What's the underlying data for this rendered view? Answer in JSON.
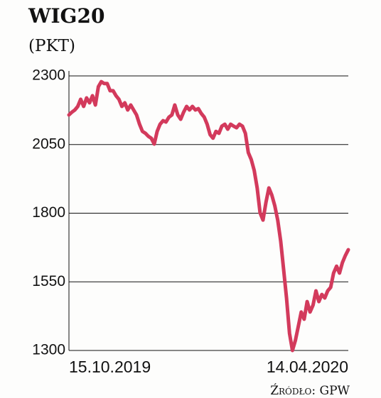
{
  "chart_data": {
    "type": "line",
    "title": "WIG20",
    "subtitle": "(PKT)",
    "source": "Źródło: GPW",
    "categories": [
      "15.10.2019",
      null,
      null,
      null,
      null,
      null,
      null,
      null,
      null,
      null,
      null,
      null,
      null,
      null,
      null,
      null,
      null,
      null,
      null,
      null,
      null,
      null,
      null,
      null,
      null,
      null,
      null,
      null,
      null,
      null,
      null,
      null,
      null,
      null,
      null,
      null,
      null,
      null,
      null,
      null,
      null,
      null,
      null,
      null,
      null,
      null,
      null,
      null,
      null,
      null,
      null,
      null,
      null,
      null,
      null,
      null,
      null,
      null,
      null,
      null,
      null,
      null,
      null,
      null,
      null,
      null,
      null,
      null,
      null,
      null,
      null,
      null,
      null,
      null,
      null,
      null,
      null,
      null,
      null,
      null,
      null,
      null,
      null,
      null,
      null,
      null,
      null,
      null,
      null,
      null,
      null,
      null,
      null,
      null,
      null,
      "14.04.2020"
    ],
    "series": [
      {
        "name": "WIG20",
        "color": "#d33a5c",
        "values": [
          2158,
          2168,
          2176,
          2189,
          2215,
          2189,
          2220,
          2202,
          2228,
          2194,
          2261,
          2279,
          2272,
          2272,
          2246,
          2246,
          2228,
          2215,
          2189,
          2202,
          2176,
          2194,
          2176,
          2158,
          2124,
          2098,
          2091,
          2080,
          2073,
          2052,
          2098,
          2124,
          2137,
          2132,
          2150,
          2158,
          2194,
          2158,
          2142,
          2168,
          2189,
          2176,
          2189,
          2176,
          2181,
          2163,
          2150,
          2124,
          2086,
          2073,
          2098,
          2091,
          2117,
          2124,
          2106,
          2124,
          2117,
          2111,
          2124,
          2117,
          2091,
          2021,
          1995,
          1956,
          1892,
          1801,
          1775,
          1840,
          1892,
          1866,
          1827,
          1775,
          1698,
          1595,
          1491,
          1362,
          1300,
          1336,
          1388,
          1440,
          1414,
          1478,
          1440,
          1465,
          1517,
          1478,
          1504,
          1491,
          1517,
          1530,
          1582,
          1607,
          1582,
          1620,
          1646,
          1667
        ]
      }
    ],
    "ylim": [
      1300,
      2300
    ],
    "yticks": [
      1300,
      1550,
      1800,
      2050,
      2300
    ],
    "grid": true
  }
}
